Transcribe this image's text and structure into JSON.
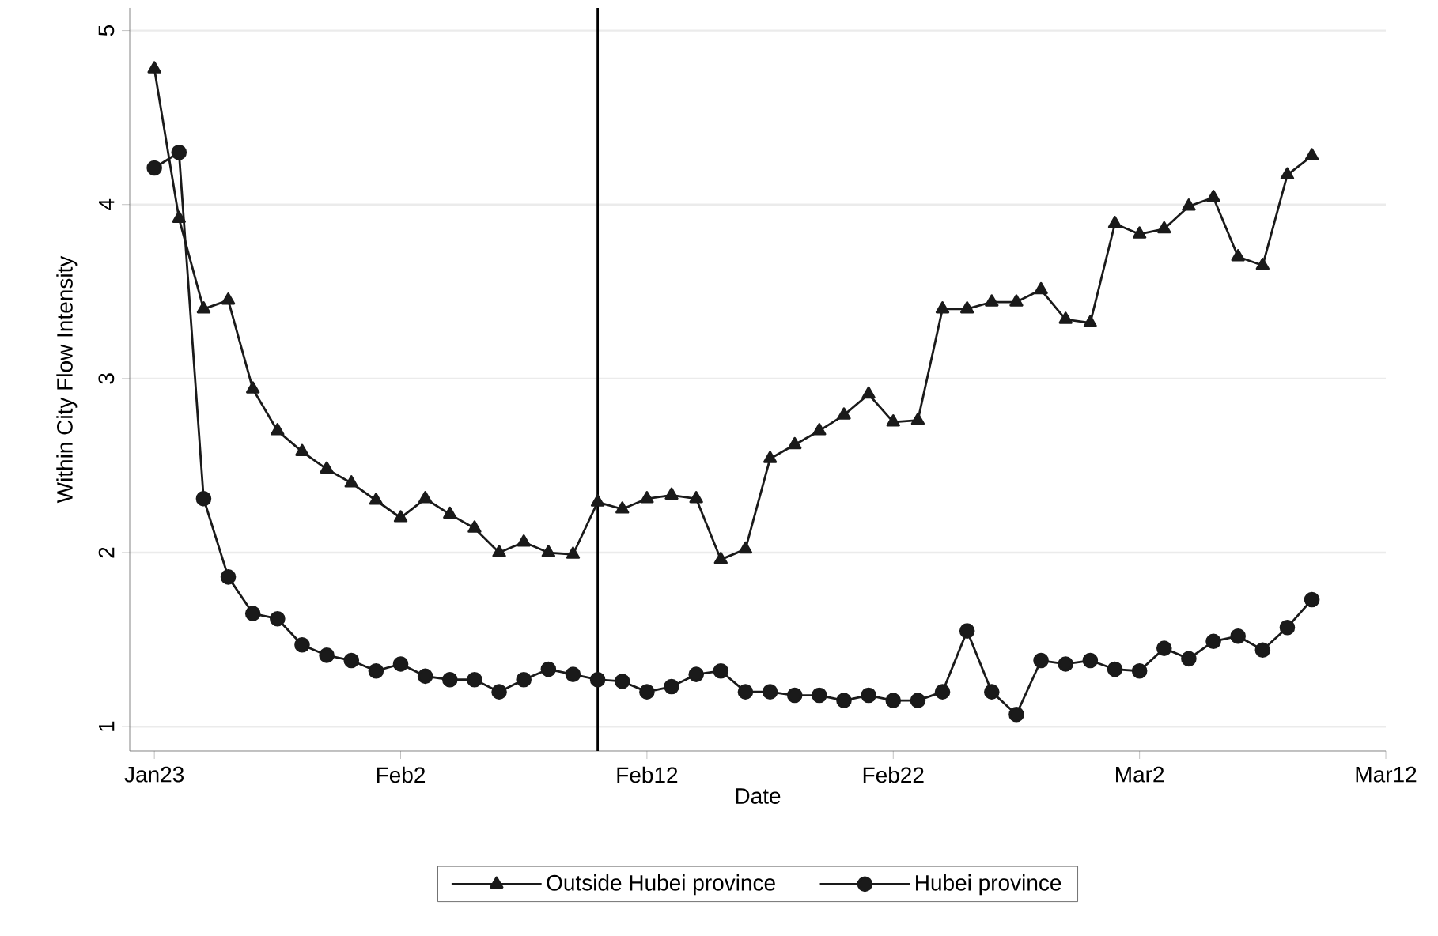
{
  "chart_data": {
    "type": "line",
    "xlabel": "Date",
    "ylabel": "Within City Flow Intensity",
    "categories": [
      "Jan23",
      null,
      null,
      null,
      null,
      null,
      null,
      null,
      null,
      null,
      "Feb2",
      null,
      null,
      null,
      null,
      null,
      null,
      null,
      null,
      null,
      "Feb12",
      null,
      null,
      null,
      null,
      null,
      null,
      null,
      null,
      null,
      "Feb22",
      null,
      null,
      null,
      null,
      null,
      null,
      null,
      null,
      null,
      "Mar2",
      null,
      null,
      null,
      null,
      null,
      null,
      null,
      null,
      null,
      "Mar12"
    ],
    "series": [
      {
        "name": "Outside Hubei province",
        "color": "#1a1a1a",
        "marker": "triangle",
        "values": [
          4.78,
          3.92,
          3.4,
          3.45,
          2.94,
          2.7,
          2.58,
          2.48,
          2.4,
          2.3,
          2.2,
          2.31,
          2.22,
          2.14,
          2.0,
          2.06,
          2.0,
          1.99,
          2.29,
          2.25,
          2.31,
          2.33,
          2.31,
          1.96,
          2.02,
          2.54,
          2.62,
          2.7,
          2.79,
          2.91,
          2.75,
          2.76,
          3.4,
          3.4,
          3.44,
          3.44,
          3.51,
          3.34,
          3.32,
          3.89,
          3.83,
          3.86,
          3.99,
          4.04,
          3.7,
          3.65,
          4.17,
          4.28,
          null,
          null,
          null
        ]
      },
      {
        "name": "Hubei province",
        "color": "#1a1a1a",
        "marker": "circle",
        "values": [
          4.21,
          4.3,
          2.31,
          1.86,
          1.65,
          1.62,
          1.47,
          1.41,
          1.38,
          1.32,
          1.36,
          1.29,
          1.27,
          1.27,
          1.2,
          1.27,
          1.33,
          1.3,
          1.27,
          1.26,
          1.2,
          1.23,
          1.3,
          1.32,
          1.2,
          1.2,
          1.18,
          1.18,
          1.15,
          1.18,
          1.15,
          1.15,
          1.2,
          1.55,
          1.2,
          1.07,
          1.38,
          1.36,
          1.38,
          1.33,
          1.32,
          1.45,
          1.39,
          1.49,
          1.52,
          1.44,
          1.57,
          1.73,
          null,
          null,
          null
        ]
      }
    ],
    "ylim": [
      0.86,
      5.13
    ],
    "yticks": [
      1,
      2,
      3,
      4,
      5
    ],
    "grid": "y",
    "legend": "bottom",
    "line_style": "solid"
  }
}
